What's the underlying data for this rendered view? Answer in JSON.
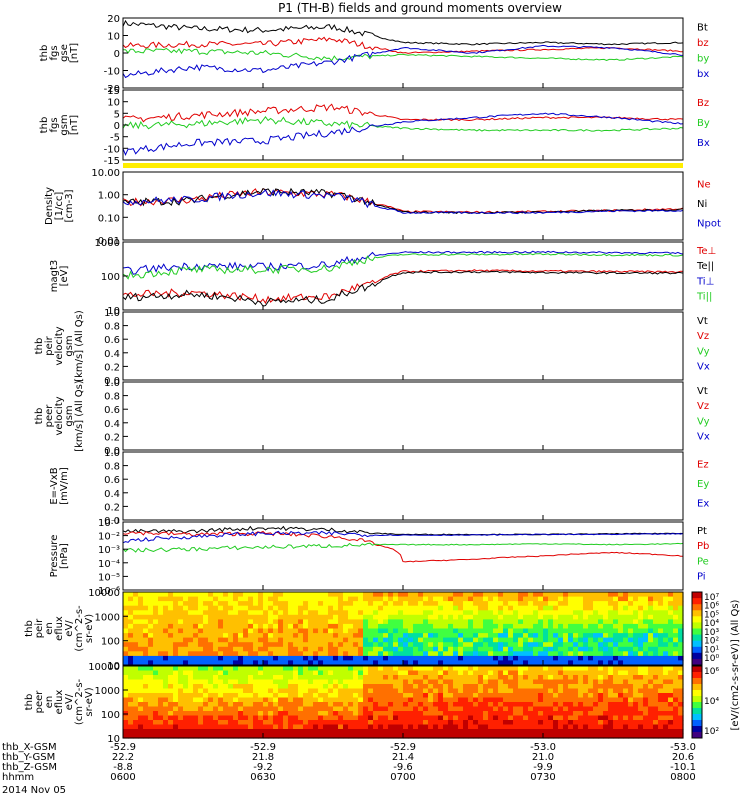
{
  "title": "P1 (TH-B) fields and ground moments overview",
  "date_label": "2014 Nov 05",
  "colors": {
    "black": "#000000",
    "red": "#e00000",
    "green": "#22cc22",
    "blue": "#0000cc",
    "yellow": "#ffee00"
  },
  "footer": {
    "row_labels": [
      "thb_X-GSM",
      "thb_Y-GSM",
      "thb_Z-GSM",
      "hhmm"
    ],
    "columns": [
      [
        "-52.9",
        "22.2",
        "-8.8",
        "0600"
      ],
      [
        "-52.9",
        "21.8",
        "-9.2",
        "0630"
      ],
      [
        "-52.9",
        "21.4",
        "-9.6",
        "0700"
      ],
      [
        "-53.0",
        "21.0",
        "-9.9",
        "0730"
      ],
      [
        "-53.0",
        "20.6",
        "-10.1",
        "0800"
      ]
    ]
  },
  "colorbar": {
    "label": "[eV/(cm2-s-sr-eV)] (All Qs)",
    "top_ticks": [
      "10⁷",
      "10⁶",
      "10⁵",
      "10⁴",
      "10³",
      "10²",
      "10¹",
      "10⁰"
    ],
    "bottom_ticks": [
      "10⁶",
      "10⁴",
      "10²"
    ]
  },
  "chart_data": [
    {
      "type": "line",
      "id": "fgs_gse",
      "ylabel": [
        "thb",
        "fgs",
        "gse",
        "[nT]"
      ],
      "ylim": [
        -20,
        20
      ],
      "yticks": [
        "20",
        "10",
        "0",
        "-10",
        "-20"
      ],
      "legend": [
        {
          "name": "Bt",
          "color": "#000000"
        },
        {
          "name": "bz",
          "color": "#e00000"
        },
        {
          "name": "by",
          "color": "#22cc22"
        },
        {
          "name": "bx",
          "color": "#0000cc"
        }
      ],
      "x_hours": [
        6.0,
        6.25,
        6.5,
        6.75,
        7.0,
        7.25,
        7.5,
        7.75,
        8.0
      ],
      "series": [
        {
          "name": "Bt",
          "values": [
            17,
            14,
            13,
            15,
            6,
            5,
            6,
            5,
            6
          ]
        },
        {
          "name": "bz",
          "values": [
            4,
            5,
            5,
            8,
            0,
            1,
            2,
            3,
            1
          ]
        },
        {
          "name": "by",
          "values": [
            1,
            1,
            0,
            -3,
            -1,
            -2,
            -3,
            -4,
            -2
          ]
        },
        {
          "name": "bx",
          "values": [
            -13,
            -8,
            -10,
            -5,
            3,
            0,
            4,
            3,
            -1
          ]
        }
      ]
    },
    {
      "type": "line",
      "id": "fgs_gsm",
      "ylabel": [
        "thb",
        "fgs",
        "gsm",
        "[nT]"
      ],
      "ylim": [
        -17,
        16
      ],
      "yticks": [
        "15",
        "10",
        "5",
        "0",
        "-5",
        "-10",
        "-15"
      ],
      "legend": [
        {
          "name": "Bz",
          "color": "#e00000"
        },
        {
          "name": "By",
          "color": "#22cc22"
        },
        {
          "name": "Bx",
          "color": "#0000cc"
        }
      ],
      "x_hours": [
        6.0,
        6.25,
        6.5,
        6.75,
        7.0,
        7.25,
        7.5,
        7.75,
        8.0
      ],
      "series": [
        {
          "name": "Bz",
          "values": [
            2,
            4,
            6,
            8,
            2,
            2,
            3,
            3,
            2
          ]
        },
        {
          "name": "By",
          "values": [
            -1,
            0,
            2,
            0,
            -2,
            -3,
            -3,
            -3,
            -2
          ]
        },
        {
          "name": "Bx",
          "values": [
            -13,
            -9,
            -8,
            -4,
            1,
            3,
            5,
            3,
            0
          ]
        }
      ]
    },
    {
      "type": "line",
      "id": "density",
      "ylog": true,
      "ylabel": [
        "Density",
        "[1/cc]",
        "[cm-3]"
      ],
      "ylim": [
        0.01,
        10
      ],
      "yticks": [
        "10.00",
        "1.00",
        "0.10",
        "0.01"
      ],
      "legend": [
        {
          "name": "Ne",
          "color": "#e00000"
        },
        {
          "name": "Ni",
          "color": "#000000"
        },
        {
          "name": "Npot",
          "color": "#0000cc"
        }
      ],
      "x_hours": [
        6.0,
        6.25,
        6.5,
        6.75,
        6.9,
        7.0,
        7.25,
        7.5,
        7.75,
        8.0
      ],
      "series": [
        {
          "name": "Ne",
          "values": [
            0.45,
            0.6,
            1.3,
            1.0,
            0.4,
            0.18,
            0.17,
            0.18,
            0.2,
            0.24
          ]
        },
        {
          "name": "Ni",
          "values": [
            0.45,
            0.55,
            1.4,
            1.1,
            0.35,
            0.17,
            0.16,
            0.17,
            0.2,
            0.22
          ]
        },
        {
          "name": "Npot",
          "values": [
            0.5,
            0.6,
            1.2,
            0.9,
            0.3,
            0.16,
            0.16,
            0.16,
            0.19,
            0.2
          ]
        }
      ]
    },
    {
      "type": "line",
      "id": "temperature",
      "ylog": true,
      "ylabel": [
        "magt3",
        "[eV]"
      ],
      "ylim": [
        10,
        10000
      ],
      "yticks": [
        "1000",
        "100",
        "10"
      ],
      "legend": [
        {
          "name": "Te⊥",
          "color": "#e00000"
        },
        {
          "name": "Te||",
          "color": "#000000"
        },
        {
          "name": "Ti⊥",
          "color": "#0000cc"
        },
        {
          "name": "Ti||",
          "color": "#22cc22"
        }
      ],
      "x_hours": [
        6.0,
        6.25,
        6.5,
        6.75,
        6.9,
        7.0,
        7.25,
        7.5,
        7.75,
        8.0
      ],
      "series": [
        {
          "name": "Te⊥",
          "values": [
            45,
            60,
            30,
            40,
            150,
            500,
            550,
            520,
            500,
            480
          ]
        },
        {
          "name": "Te||",
          "values": [
            35,
            50,
            22,
            30,
            120,
            450,
            480,
            450,
            430,
            420
          ]
        },
        {
          "name": "Ti⊥",
          "values": [
            500,
            900,
            800,
            1000,
            2500,
            3500,
            3500,
            3600,
            3400,
            3200
          ]
        },
        {
          "name": "Ti||",
          "values": [
            300,
            600,
            600,
            700,
            2000,
            2800,
            2800,
            2900,
            2700,
            2600
          ]
        }
      ]
    },
    {
      "type": "line",
      "id": "peir_velocity",
      "ylabel": [
        "thb",
        "peir",
        "velocity",
        "gsm",
        "[km/s] (All Qs)"
      ],
      "ylim": [
        0,
        1
      ],
      "yticks": [
        "1.0",
        "0.8",
        "0.6",
        "0.4",
        "0.2",
        "0.0"
      ],
      "legend": [
        {
          "name": "Vt",
          "color": "#000000"
        },
        {
          "name": "Vz",
          "color": "#e00000"
        },
        {
          "name": "Vy",
          "color": "#22cc22"
        },
        {
          "name": "Vx",
          "color": "#0000cc"
        }
      ],
      "series": []
    },
    {
      "type": "line",
      "id": "peer_velocity",
      "ylabel": [
        "thb",
        "peer",
        "velocity",
        "gsm",
        "[km/s] (All Qs)"
      ],
      "ylim": [
        0,
        1
      ],
      "yticks": [
        "1.0",
        "0.8",
        "0.6",
        "0.4",
        "0.2",
        "0.0"
      ],
      "legend": [
        {
          "name": "Vt",
          "color": "#000000"
        },
        {
          "name": "Vz",
          "color": "#e00000"
        },
        {
          "name": "Vy",
          "color": "#22cc22"
        },
        {
          "name": "Vx",
          "color": "#0000cc"
        }
      ],
      "series": []
    },
    {
      "type": "line",
      "id": "efield",
      "ylabel": [
        "E=-VxB",
        "[mV/m]"
      ],
      "ylim": [
        0,
        1
      ],
      "yticks": [
        "1.0",
        "0.8",
        "0.6",
        "0.4",
        "0.2",
        "0.0"
      ],
      "legend": [
        {
          "name": "Ez",
          "color": "#e00000"
        },
        {
          "name": "Ey",
          "color": "#22cc22"
        },
        {
          "name": "Ex",
          "color": "#0000cc"
        }
      ],
      "series": []
    },
    {
      "type": "line",
      "id": "pressure",
      "ylog": true,
      "ylabel": [
        "Pressure",
        "[nPa]"
      ],
      "ylim": [
        1e-06,
        1
      ],
      "yticks": [
        "10⁻¹",
        "10⁻²",
        "10⁻³",
        "10⁻⁴",
        "10⁻⁵",
        "10⁻⁶"
      ],
      "legend": [
        {
          "name": "Pt",
          "color": "#000000"
        },
        {
          "name": "Pb",
          "color": "#e00000"
        },
        {
          "name": "Pe",
          "color": "#22cc22"
        },
        {
          "name": "Pi",
          "color": "#0000cc"
        }
      ],
      "x_hours": [
        6.0,
        6.25,
        6.5,
        6.75,
        6.9,
        7.0,
        7.25,
        7.5,
        7.75,
        8.0
      ],
      "series": [
        {
          "name": "Pt",
          "values": [
            0.15,
            0.15,
            0.3,
            0.2,
            0.1,
            0.08,
            0.08,
            0.08,
            0.09,
            0.1
          ]
        },
        {
          "name": "Pb",
          "values": [
            0.12,
            0.08,
            0.1,
            0.05,
            0.01,
            0.0003,
            0.0005,
            0.001,
            0.002,
            0.001
          ]
        },
        {
          "name": "Pe",
          "values": [
            0.003,
            0.004,
            0.006,
            0.008,
            0.01,
            0.01,
            0.01,
            0.012,
            0.01,
            0.012
          ]
        },
        {
          "name": "Pi",
          "values": [
            0.02,
            0.05,
            0.1,
            0.1,
            0.07,
            0.07,
            0.07,
            0.08,
            0.08,
            0.09
          ]
        }
      ]
    },
    {
      "type": "heatmap",
      "id": "peir_eflux",
      "ylabel": [
        "thb",
        "peir",
        "en",
        "eflux",
        "eV/",
        "(cm^2-s-",
        "sr-eV)"
      ],
      "ylim": [
        5,
        20000
      ],
      "yticks": [
        "10000",
        "1000",
        "100",
        "10"
      ]
    },
    {
      "type": "heatmap",
      "id": "peer_eflux",
      "ylabel": [
        "thb",
        "peer",
        "en",
        "eflux",
        "eV/",
        "(cm^2-s-",
        "sr-eV)"
      ],
      "ylim": [
        5,
        20000
      ],
      "yticks": [
        "10000",
        "1000",
        "100",
        "10"
      ]
    }
  ]
}
